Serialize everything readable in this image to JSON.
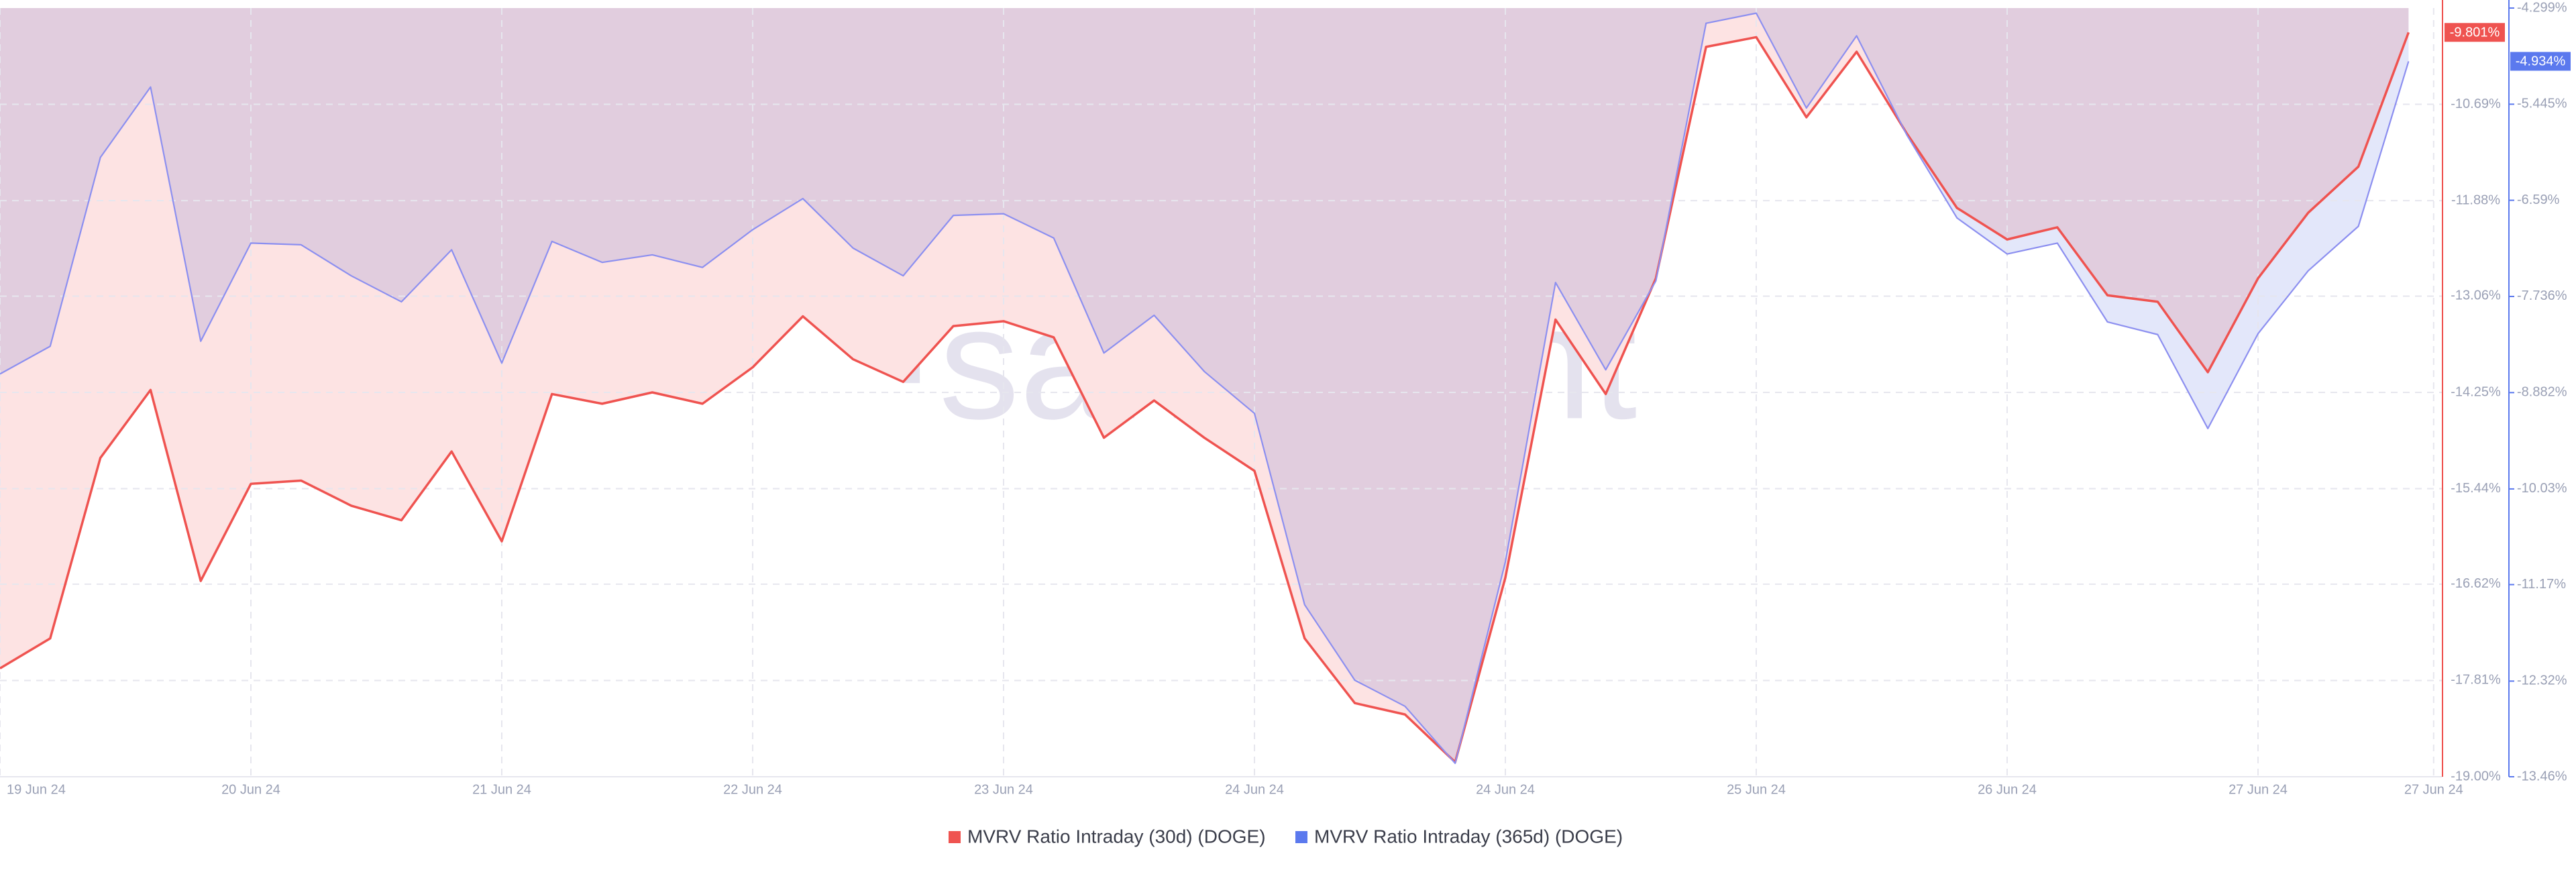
{
  "chart_data": {
    "type": "line",
    "watermark": "·santiment",
    "xticks": [
      {
        "value": 0,
        "label": "19 Jun 24"
      },
      {
        "value": 5,
        "label": "20 Jun 24"
      },
      {
        "value": 10,
        "label": "21 Jun 24"
      },
      {
        "value": 15,
        "label": "22 Jun 24"
      },
      {
        "value": 20,
        "label": "23 Jun 24"
      },
      {
        "value": 25,
        "label": "24 Jun 24"
      },
      {
        "value": 30,
        "label": "24 Jun 24"
      },
      {
        "value": 35,
        "label": "25 Jun 24"
      },
      {
        "value": 40,
        "label": "26 Jun 24"
      },
      {
        "value": 45,
        "label": "27 Jun 24"
      },
      {
        "value": 48.5,
        "label": "27 Jun 24"
      }
    ],
    "ylim": [
      -19.0,
      -9.5
    ],
    "yticks": [
      {
        "value": -19.0,
        "label": "-19.00%"
      },
      {
        "value": -17.81,
        "label": "-17.81%"
      },
      {
        "value": -16.62,
        "label": "-16.62%"
      },
      {
        "value": -15.44,
        "label": "-15.44%"
      },
      {
        "value": -14.25,
        "label": "-14.25%"
      },
      {
        "value": -13.06,
        "label": "-13.06%"
      },
      {
        "value": -11.88,
        "label": "-11.88%"
      },
      {
        "value": -10.69,
        "label": "-10.69%"
      }
    ],
    "y2lim": [
      -13.46,
      -4.299
    ],
    "y2ticks": [
      {
        "value": -13.46,
        "label": "-13.46%"
      },
      {
        "value": -12.32,
        "label": "-12.32%"
      },
      {
        "value": -11.17,
        "label": "-11.17%"
      },
      {
        "value": -10.03,
        "label": "-10.03%"
      },
      {
        "value": -8.882,
        "label": "-8.882%"
      },
      {
        "value": -7.736,
        "label": "-7.736%"
      },
      {
        "value": -6.59,
        "label": "-6.59%"
      },
      {
        "value": -5.445,
        "label": "-5.445%"
      },
      {
        "value": -4.299,
        "label": "-4.299%"
      }
    ],
    "grid": true,
    "series": [
      {
        "name": "MVRV Ratio Intraday (30d) (DOGE)",
        "color": "#ef5350",
        "fill": "#fde3e3",
        "axis": "y",
        "values": [
          -17.66,
          -17.29,
          -15.06,
          -14.22,
          -16.58,
          -15.38,
          -15.34,
          -15.65,
          -15.83,
          -14.98,
          -16.09,
          -14.27,
          -14.39,
          -14.25,
          -14.39,
          -13.94,
          -13.31,
          -13.84,
          -14.12,
          -13.43,
          -13.37,
          -13.57,
          -14.81,
          -14.35,
          -14.81,
          -15.22,
          -17.29,
          -18.09,
          -18.23,
          -18.82,
          -16.54,
          -13.35,
          -14.27,
          -12.84,
          -9.98,
          -9.86,
          -10.85,
          -10.04,
          -11.05,
          -11.97,
          -12.36,
          -12.21,
          -13.05,
          -13.13,
          -14.0,
          -12.84,
          -12.03,
          -11.46,
          -9.801
        ],
        "value_labels": [
          null,
          null,
          null,
          null,
          null,
          null,
          null,
          null,
          null,
          null,
          null,
          null,
          null,
          null,
          null,
          null,
          null,
          null,
          null,
          null,
          null,
          null,
          null,
          null,
          null,
          null,
          null,
          null,
          null,
          null,
          null,
          null,
          null,
          null,
          null,
          null,
          null,
          null,
          null,
          null,
          null,
          null,
          null,
          null,
          null,
          null,
          null,
          null,
          "-9.801%"
        ]
      },
      {
        "name": "MVRV Ratio Intraday (365d) (DOGE)",
        "color": "#5b79ee",
        "fill": "#e3e7fa",
        "axis": "y2",
        "values": [
          -8.66,
          -8.33,
          -6.08,
          -5.24,
          -8.27,
          -7.1,
          -7.12,
          -7.49,
          -7.8,
          -7.18,
          -8.53,
          -7.08,
          -7.33,
          -7.24,
          -7.39,
          -6.94,
          -6.57,
          -7.16,
          -7.49,
          -6.77,
          -6.75,
          -7.04,
          -8.41,
          -7.96,
          -8.63,
          -9.13,
          -11.41,
          -12.31,
          -12.62,
          -13.3,
          -10.9,
          -7.57,
          -8.61,
          -7.55,
          -4.48,
          -4.36,
          -5.49,
          -4.63,
          -5.81,
          -6.8,
          -7.23,
          -7.1,
          -8.04,
          -8.19,
          -9.31,
          -8.18,
          -7.43,
          -6.9,
          -4.934
        ],
        "value_labels": [
          null,
          null,
          null,
          null,
          null,
          null,
          null,
          null,
          null,
          null,
          null,
          null,
          null,
          null,
          null,
          null,
          null,
          null,
          null,
          null,
          null,
          null,
          null,
          null,
          null,
          null,
          null,
          null,
          null,
          null,
          null,
          null,
          null,
          null,
          null,
          null,
          null,
          null,
          null,
          null,
          null,
          null,
          null,
          null,
          null,
          null,
          null,
          null,
          "-4.934%"
        ]
      }
    ]
  }
}
